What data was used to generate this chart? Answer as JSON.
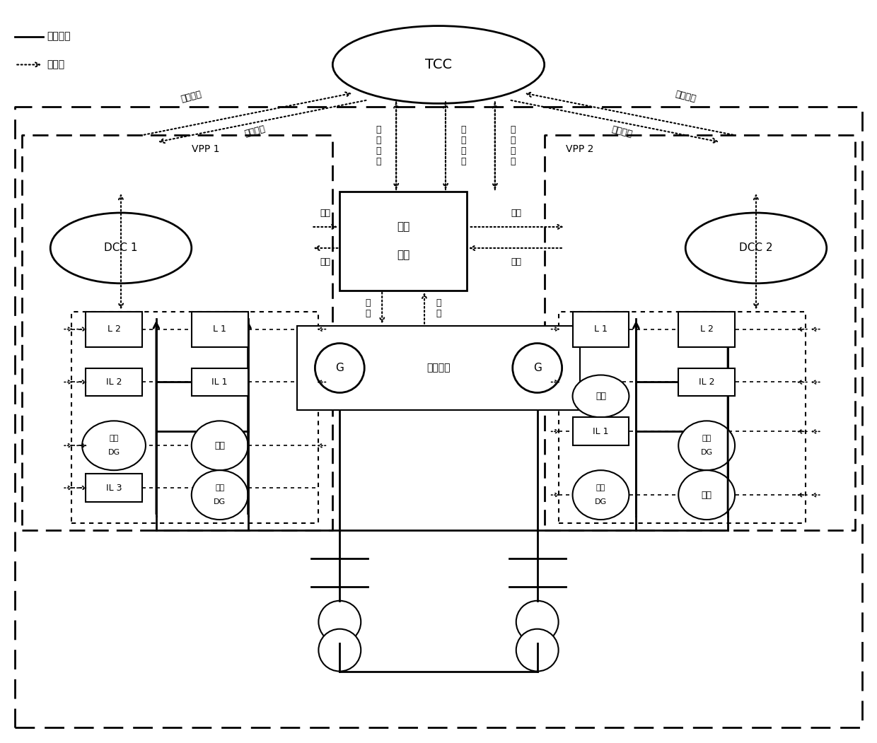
{
  "bg_color": "#ffffff",
  "figsize": [
    12.4,
    10.51
  ],
  "dpi": 100,
  "xlim": [
    0,
    124
  ],
  "ylim": [
    0,
    105
  ]
}
